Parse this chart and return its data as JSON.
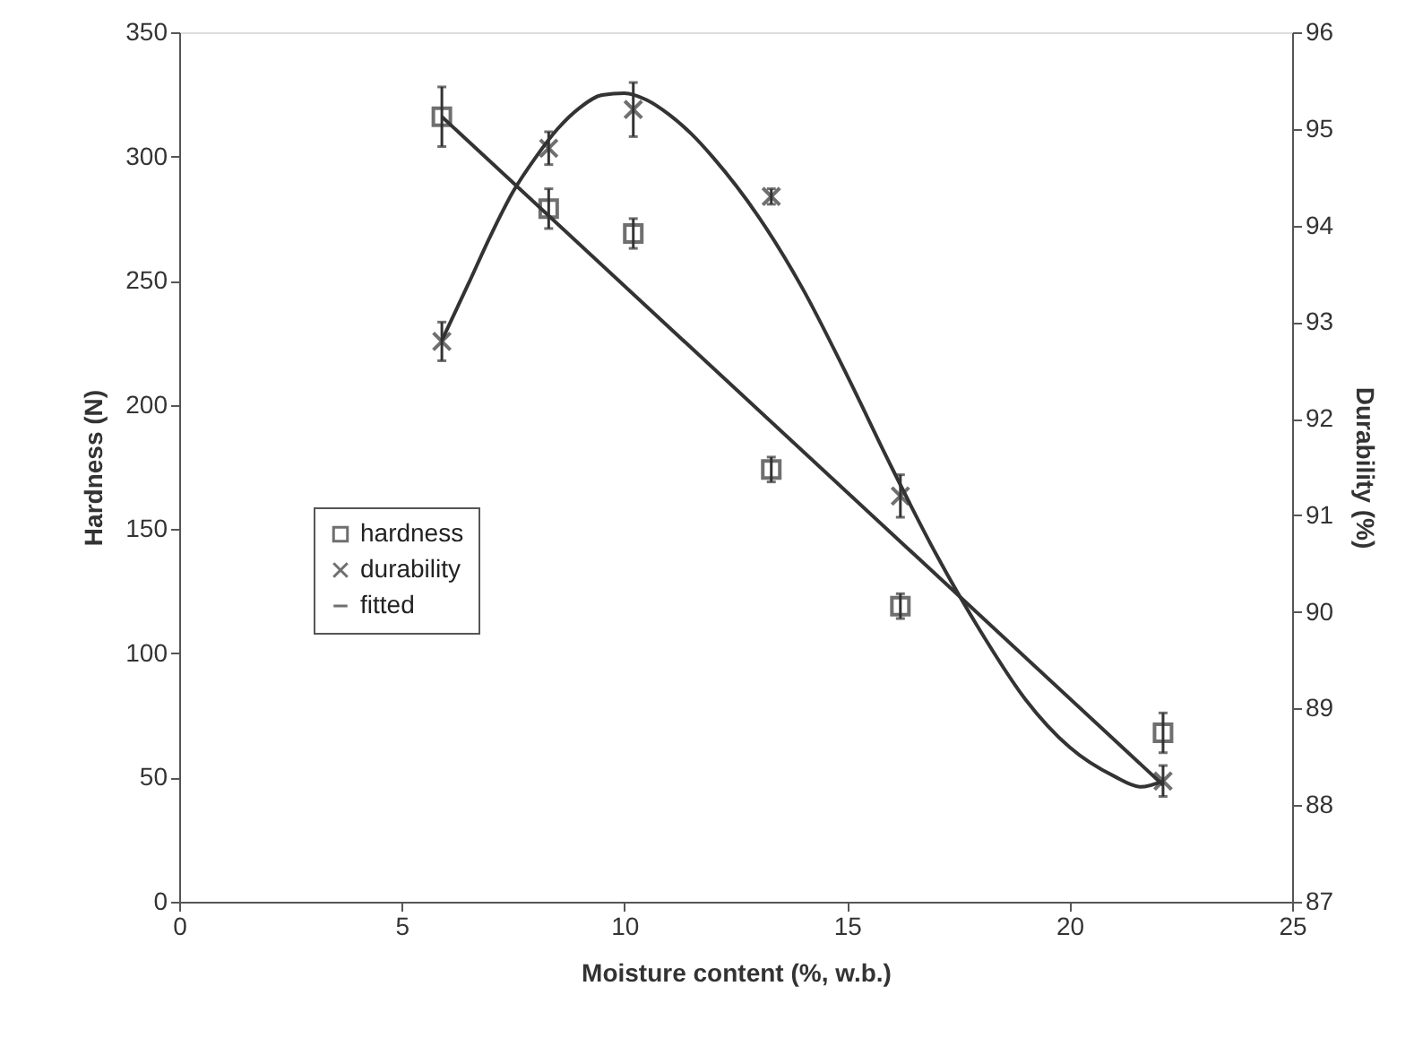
{
  "chart_data": {
    "type": "scatter",
    "xlabel": "Moisture content (%, w.b.)",
    "ylabel": "Hardness (N)",
    "y2label": "Durability (%)",
    "xlim": [
      0,
      25
    ],
    "xticks": [
      0,
      5,
      10,
      15,
      20,
      25
    ],
    "ylim": [
      0,
      350
    ],
    "yticks": [
      0,
      50,
      100,
      150,
      200,
      250,
      300,
      350
    ],
    "y2lim": [
      87,
      96
    ],
    "y2ticks": [
      87,
      88,
      89,
      90,
      91,
      92,
      93,
      94,
      95,
      96
    ],
    "grid": false,
    "legend": "left",
    "series": [
      {
        "name": "hardness",
        "marker": "square",
        "color": "#333333",
        "x": [
          5.9,
          8.3,
          10.2,
          13.3,
          16.2,
          22.1
        ],
        "values": [
          316,
          279,
          269,
          174,
          119,
          68
        ],
        "errors": [
          12,
          8,
          6,
          5,
          5,
          8
        ]
      },
      {
        "name": "durability",
        "marker": "cross",
        "axis": "y2",
        "color": "#333333",
        "x": [
          5.9,
          8.3,
          10.2,
          13.3,
          16.2,
          22.1
        ],
        "values": [
          92.8,
          94.8,
          95.2,
          94.3,
          91.2,
          88.25
        ],
        "errors": [
          0.2,
          0.17,
          0.28,
          0.08,
          0.22,
          0.16
        ]
      },
      {
        "name": "fitted",
        "type": "line",
        "color": "#333333",
        "x": [
          5.9,
          22.1
        ],
        "values": [
          316,
          47
        ]
      },
      {
        "type": "line",
        "axis": "y2",
        "color": "#333333",
        "x": [
          5.9,
          6.5,
          7,
          7.5,
          8,
          8.5,
          9,
          9.5,
          10,
          10.5,
          11,
          11.5,
          12,
          13,
          14,
          15,
          16,
          17,
          18,
          19,
          20,
          21,
          21.6,
          22.1
        ],
        "values": [
          92.81,
          93.4,
          93.9,
          94.35,
          94.7,
          95.0,
          95.22,
          95.35,
          95.37,
          95.3,
          95.15,
          94.95,
          94.7,
          94.1,
          93.35,
          92.45,
          91.5,
          90.6,
          89.8,
          89.1,
          88.6,
          88.3,
          88.19,
          88.25
        ]
      }
    ]
  }
}
